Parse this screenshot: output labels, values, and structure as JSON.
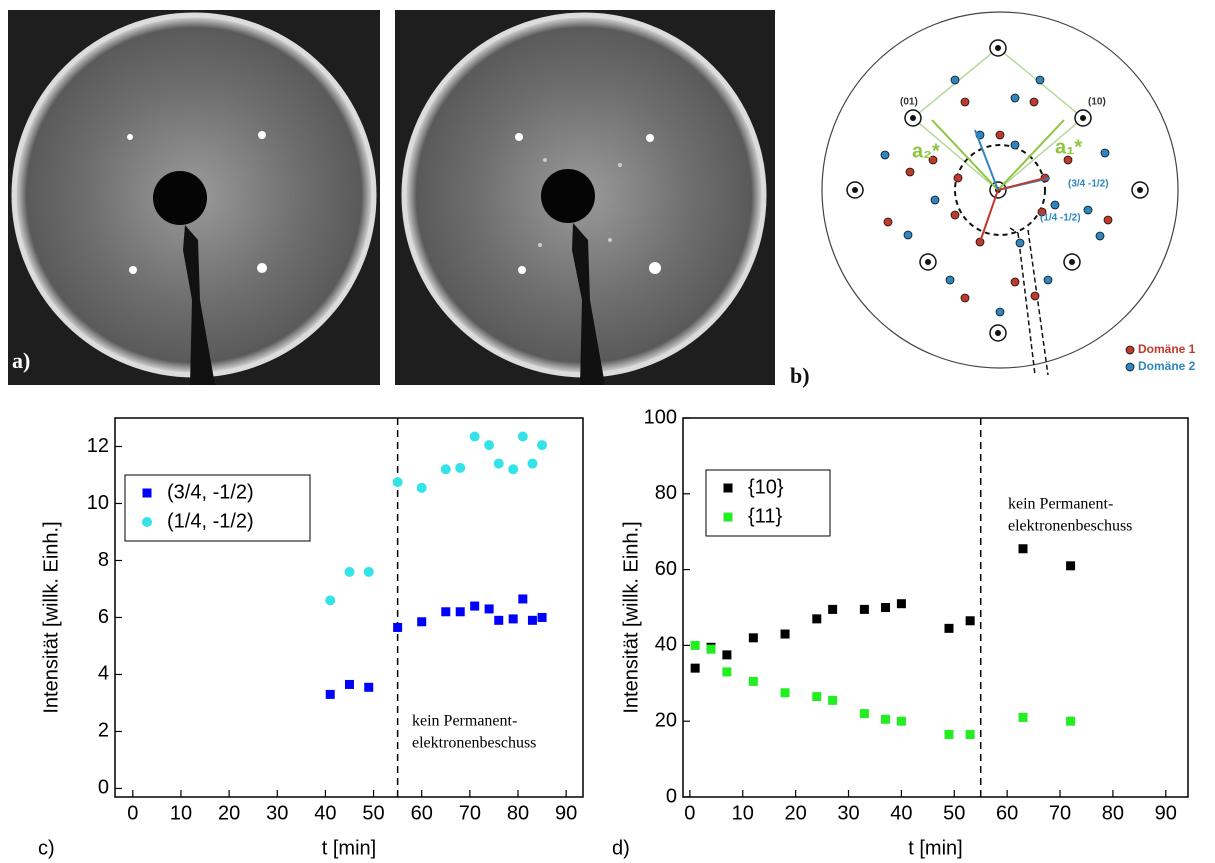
{
  "figure": {
    "panel_labels": [
      "a)",
      "b)"
    ],
    "diagram": {
      "spot_labels": [
        "(01)",
        "(10)"
      ],
      "vectors": [
        "a₂*",
        "a₁*"
      ],
      "fractional": [
        "(3/4 -1/2)",
        "(1/4 -1/2)"
      ],
      "legend": [
        {
          "name": "Domäne 1",
          "color": "#c0392b"
        },
        {
          "name": "Domäne 2",
          "color": "#2e86c1"
        }
      ]
    }
  },
  "chart_data": [
    {
      "type": "scatter",
      "panel": "c)",
      "xlabel": "t [min]",
      "ylabel": "Intensität [willk. Einh.]",
      "x": [
        41,
        45,
        49,
        55,
        60,
        65,
        68,
        71,
        74,
        76,
        79,
        81,
        83,
        85
      ],
      "series": [
        {
          "name": "(3/4, -1/2)",
          "color": "#0000ff",
          "marker": "square",
          "values": [
            3.3,
            3.65,
            3.55,
            5.65,
            5.85,
            6.2,
            6.2,
            6.4,
            6.3,
            5.9,
            5.95,
            6.65,
            5.9,
            6.0
          ]
        },
        {
          "name": "(1/4, -1/2)",
          "color": "#33e3e8",
          "marker": "circle",
          "values": [
            6.6,
            7.6,
            7.6,
            10.75,
            10.55,
            11.2,
            11.25,
            12.35,
            12.05,
            11.4,
            11.2,
            12.35,
            11.4,
            12.05
          ]
        }
      ],
      "xlim": [
        -3.7,
        93.5
      ],
      "xticks": [
        0,
        10,
        20,
        30,
        40,
        50,
        60,
        70,
        80,
        90
      ],
      "ylim": [
        -0.3,
        13
      ],
      "yticks": [
        0,
        2,
        4,
        6,
        8,
        10,
        12
      ],
      "legend": "upper left",
      "annotation": {
        "x": 55,
        "lines": [
          "kein Permanent-",
          "elektronenbeschuss"
        ]
      }
    },
    {
      "type": "scatter",
      "panel": "d)",
      "xlabel": "t [min]",
      "ylabel": "Intensität [willk. Einh.]",
      "x": [
        1,
        4,
        7,
        12,
        18,
        24,
        27,
        33,
        37,
        40,
        49,
        53,
        63,
        72
      ],
      "series": [
        {
          "name": "{10}",
          "color": "#000000",
          "marker": "square",
          "values": [
            34,
            39.5,
            37.5,
            42,
            43,
            47,
            49.5,
            49.5,
            50,
            51,
            44.5,
            46.5,
            65.5,
            61
          ]
        },
        {
          "name": "{11}",
          "color": "#22ee22",
          "marker": "square",
          "values": [
            40,
            39,
            33,
            30.5,
            27.5,
            26.5,
            25.5,
            22,
            20.5,
            20,
            16.5,
            16.5,
            21,
            20
          ]
        }
      ],
      "xlim": [
        -1.3,
        94.2
      ],
      "xticks": [
        0,
        10,
        20,
        30,
        40,
        50,
        60,
        70,
        80,
        90
      ],
      "ylim": [
        0,
        100
      ],
      "yticks": [
        0,
        20,
        40,
        60,
        80,
        100
      ],
      "legend": "upper left",
      "annotation": {
        "x": 55,
        "lines": [
          "kein Permanent-",
          "elektronenbeschuss"
        ]
      }
    }
  ]
}
